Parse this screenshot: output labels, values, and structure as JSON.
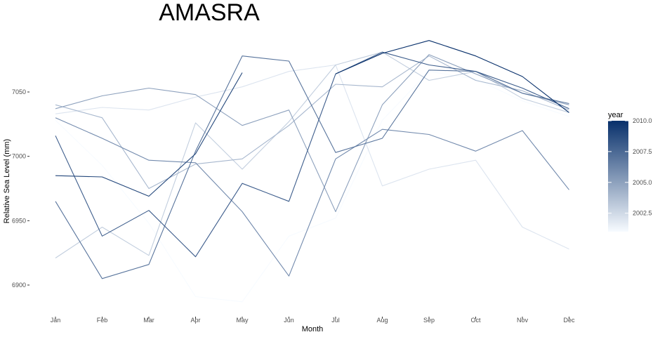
{
  "chart_data": {
    "type": "line",
    "title": "AMASRA",
    "xlabel": "Month",
    "ylabel": "Relative Sea Level (mm)",
    "categories": [
      "Jan",
      "Feb",
      "Mar",
      "Apr",
      "May",
      "Jun",
      "Jul",
      "Aug",
      "Sep",
      "Oct",
      "Nov",
      "Dec"
    ],
    "ylim": [
      6880,
      7100
    ],
    "yticks": [
      6900,
      6950,
      7000,
      7050
    ],
    "grid": false,
    "series": [
      {
        "year": 2001,
        "values": [
          7028,
          6993,
          6948,
          6891,
          6887,
          6938,
          6952,
          7028,
          7066,
          7060,
          7043,
          7031
        ]
      },
      {
        "year": 2002,
        "values": [
          7033,
          7038,
          7036,
          7046,
          7054,
          7066,
          7071,
          6977,
          6990,
          6997,
          6945,
          6928
        ]
      },
      {
        "year": 2003,
        "values": [
          6921,
          6945,
          6923,
          7026,
          6990,
          7027,
          7071,
          7081,
          7059,
          7066,
          7045,
          7034
        ]
      },
      {
        "year": 2004,
        "values": [
          7040,
          7030,
          6975,
          6994,
          6998,
          7024,
          7056,
          7054,
          7078,
          7059,
          7051,
          7036
        ]
      },
      {
        "year": 2005,
        "values": [
          7037,
          7047,
          7053,
          7048,
          7024,
          7036,
          6957,
          7040,
          7079,
          7064,
          7049,
          7040
        ]
      },
      {
        "year": 2006,
        "values": [
          7030,
          7014,
          6997,
          6995,
          6957,
          6907,
          6998,
          7021,
          7017,
          7004,
          7020,
          6974
        ]
      },
      {
        "year": 2007,
        "values": [
          6965,
          6905,
          6916,
          7004,
          7078,
          7074,
          7003,
          7014,
          7067,
          7066,
          7049,
          7041
        ]
      },
      {
        "year": 2008,
        "values": [
          7016,
          6938,
          6958,
          6922,
          6979,
          6965,
          7064,
          7081,
          7071,
          7066,
          7053,
          7037
        ]
      },
      {
        "year": 2009,
        "values": [
          6985,
          6984,
          6969,
          7002,
          7065,
          null,
          null,
          null,
          null,
          null,
          null,
          null
        ]
      },
      {
        "year": 2010,
        "values": [
          null,
          null,
          null,
          null,
          null,
          null,
          7064,
          7080,
          7090,
          7078,
          7062,
          7034
        ]
      }
    ],
    "legend": {
      "title": "year",
      "position": "right",
      "range": [
        2001,
        2010
      ],
      "ticks": [
        "2002.5",
        "2005.0",
        "2007.5",
        "2010.0"
      ],
      "color_low": "#f7fbff",
      "color_high": "#08306b"
    }
  }
}
